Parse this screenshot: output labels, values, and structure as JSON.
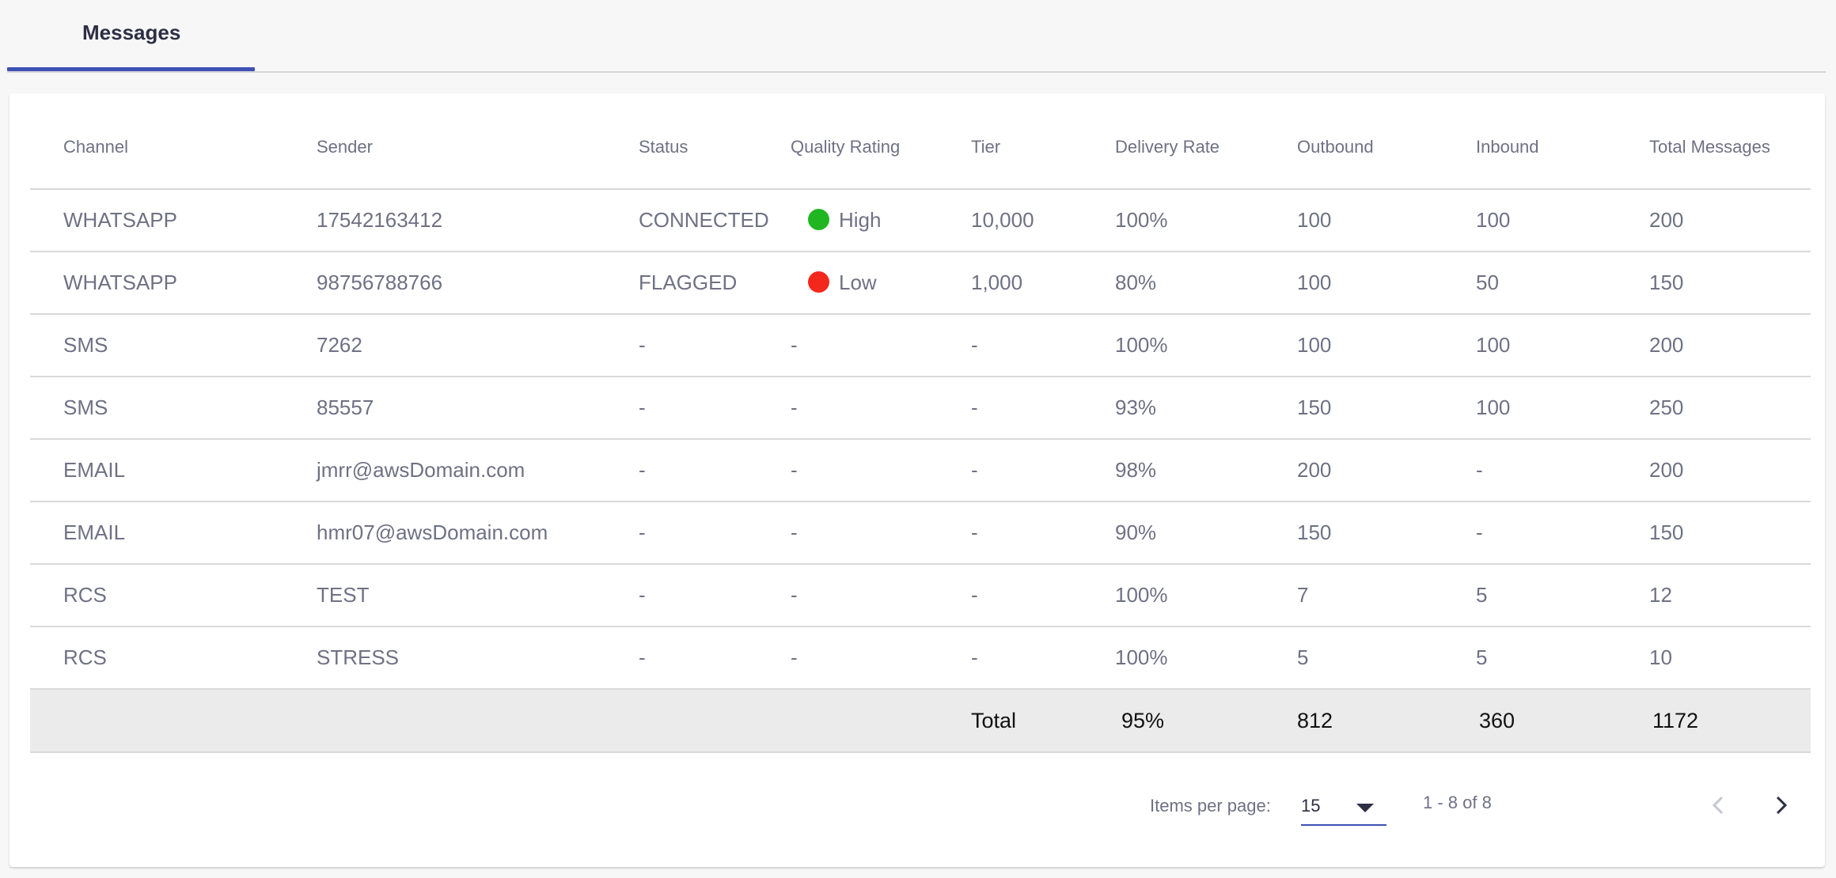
{
  "tabs": [
    {
      "label": "Messages",
      "active": true
    }
  ],
  "table": {
    "headers": [
      "Channel",
      "Sender",
      "Status",
      "Quality Rating",
      "Tier",
      "Delivery Rate",
      "Outbound",
      "Inbound",
      "Total Messages"
    ],
    "rows": [
      {
        "channel": "WHATSAPP",
        "sender": "17542163412",
        "status": "CONNECTED",
        "quality": "High",
        "quality_color": "#1fb622",
        "tier": "10,000",
        "delivery_rate": "100%",
        "outbound": "100",
        "inbound": "100",
        "total": "200"
      },
      {
        "channel": "WHATSAPP",
        "sender": "98756788766",
        "status": "FLAGGED",
        "quality": "Low",
        "quality_color": "#f4271c",
        "tier": "1,000",
        "delivery_rate": "80%",
        "outbound": "100",
        "inbound": "50",
        "total": "150"
      },
      {
        "channel": "SMS",
        "sender": "7262",
        "status": "-",
        "quality": "-",
        "quality_color": null,
        "tier": "-",
        "delivery_rate": "100%",
        "outbound": "100",
        "inbound": "100",
        "total": "200"
      },
      {
        "channel": "SMS",
        "sender": "85557",
        "status": "-",
        "quality": "-",
        "quality_color": null,
        "tier": "-",
        "delivery_rate": "93%",
        "outbound": "150",
        "inbound": "100",
        "total": "250"
      },
      {
        "channel": "EMAIL",
        "sender": "jmrr@awsDomain.com",
        "status": "-",
        "quality": "-",
        "quality_color": null,
        "tier": "-",
        "delivery_rate": "98%",
        "outbound": "200",
        "inbound": "-",
        "total": "200"
      },
      {
        "channel": "EMAIL",
        "sender": "hmr07@awsDomain.com",
        "status": "-",
        "quality": "-",
        "quality_color": null,
        "tier": "-",
        "delivery_rate": "90%",
        "outbound": "150",
        "inbound": "-",
        "total": "150"
      },
      {
        "channel": "RCS",
        "sender": "TEST",
        "status": "-",
        "quality": "-",
        "quality_color": null,
        "tier": "-",
        "delivery_rate": "100%",
        "outbound": "7",
        "inbound": "5",
        "total": "12"
      },
      {
        "channel": "RCS",
        "sender": "STRESS",
        "status": "-",
        "quality": "-",
        "quality_color": null,
        "tier": "-",
        "delivery_rate": "100%",
        "outbound": "5",
        "inbound": "5",
        "total": "10"
      }
    ],
    "totals": {
      "label": "Total",
      "delivery_rate": "95%",
      "outbound": "812",
      "inbound": "360",
      "total": "1172"
    }
  },
  "paginator": {
    "items_per_page_label": "Items per page:",
    "items_per_page": "15",
    "range": "1 - 8 of 8",
    "prev_icon": "chevron-left-icon",
    "next_icon": "chevron-right-icon"
  },
  "colors": {
    "accent": "#3f51b5",
    "text": "#6f7184",
    "heading": "#2d2f45",
    "total_row_bg": "#ebebeb"
  }
}
